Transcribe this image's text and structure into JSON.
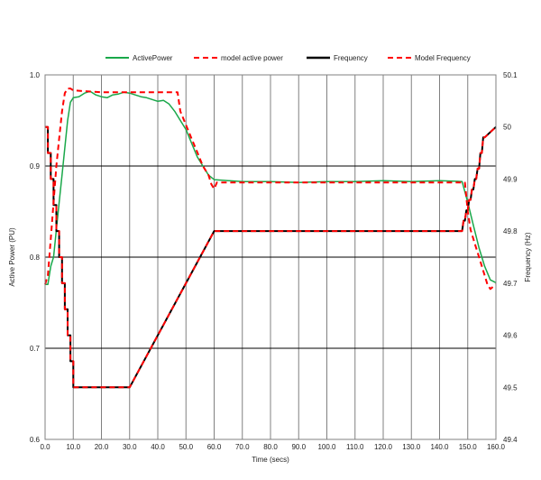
{
  "chart_data": {
    "type": "line",
    "xlabel": "Time (secs)",
    "ylabel": "Active Power (PU)",
    "y2label": "Frequency (Hz)",
    "xlim": [
      0,
      160
    ],
    "ylim": [
      0.6,
      1.0
    ],
    "y2lim": [
      49.4,
      50.1
    ],
    "xticks": [
      "0.0",
      "10.0",
      "20.0",
      "30.0",
      "40.0",
      "50.0",
      "60.0",
      "70.0",
      "80.0",
      "90.0",
      "100.0",
      "110.0",
      "120.0",
      "130.0",
      "140.0",
      "150.0",
      "160.0"
    ],
    "yticks": [
      "0.6",
      "0.7",
      "0.8",
      "0.9",
      "1.0"
    ],
    "y2ticks": [
      "49.4",
      "49.5",
      "49.6",
      "49.7",
      "49.8",
      "49.9",
      "50",
      "50.1"
    ],
    "grid": true,
    "legend_placement": "top",
    "series": [
      {
        "name": "ActivePower",
        "axis": "left",
        "color": "#1aa84a",
        "dash": false,
        "x": [
          0,
          1,
          2,
          3,
          4,
          5,
          6,
          7,
          8,
          9,
          10,
          12,
          14,
          16,
          18,
          20,
          22,
          24,
          26,
          28,
          30,
          32,
          34,
          36,
          38,
          40,
          42,
          44,
          46,
          48,
          50,
          52,
          54,
          56,
          58,
          60,
          65,
          70,
          80,
          90,
          100,
          110,
          120,
          130,
          140,
          148,
          150,
          152,
          154,
          156,
          158,
          160
        ],
        "y": [
          0.77,
          0.77,
          0.79,
          0.8,
          0.83,
          0.86,
          0.89,
          0.92,
          0.95,
          0.97,
          0.975,
          0.976,
          0.98,
          0.982,
          0.978,
          0.976,
          0.975,
          0.978,
          0.979,
          0.981,
          0.98,
          0.978,
          0.976,
          0.975,
          0.973,
          0.971,
          0.972,
          0.968,
          0.96,
          0.95,
          0.94,
          0.925,
          0.91,
          0.9,
          0.89,
          0.885,
          0.884,
          0.883,
          0.883,
          0.882,
          0.883,
          0.883,
          0.884,
          0.883,
          0.884,
          0.883,
          0.86,
          0.835,
          0.81,
          0.79,
          0.775,
          0.772
        ]
      },
      {
        "name": "model active power",
        "axis": "left",
        "color": "#ff0000",
        "dash": true,
        "x": [
          0,
          1,
          2,
          3,
          4,
          5,
          6,
          7,
          8,
          9,
          10,
          15,
          20,
          30,
          40,
          47,
          48,
          50,
          52,
          54,
          56,
          58,
          59,
          60,
          61,
          70,
          80,
          90,
          100,
          110,
          120,
          130,
          140,
          149,
          150,
          151,
          152,
          153,
          154,
          155,
          156,
          157,
          158,
          160
        ],
        "y": [
          0.77,
          0.78,
          0.82,
          0.86,
          0.9,
          0.93,
          0.96,
          0.98,
          0.985,
          0.985,
          0.983,
          0.982,
          0.981,
          0.981,
          0.981,
          0.981,
          0.96,
          0.945,
          0.93,
          0.915,
          0.9,
          0.89,
          0.88,
          0.875,
          0.882,
          0.882,
          0.882,
          0.882,
          0.882,
          0.882,
          0.882,
          0.882,
          0.882,
          0.882,
          0.85,
          0.83,
          0.82,
          0.81,
          0.8,
          0.79,
          0.78,
          0.77,
          0.765,
          0.77
        ]
      },
      {
        "name": "Frequency",
        "axis": "right",
        "color": "#000000",
        "dash": false,
        "x": [
          0,
          1,
          1,
          2,
          2,
          3,
          3,
          4,
          4,
          5,
          5,
          6,
          6,
          7,
          7,
          8,
          8,
          9,
          9,
          10,
          10,
          30,
          60,
          148,
          148.5,
          149,
          149.5,
          150,
          150.5,
          151,
          151.5,
          152,
          152.5,
          153,
          153.5,
          154,
          154.5,
          155,
          155.5,
          156,
          160
        ],
        "y": [
          50.0,
          50.0,
          49.95,
          49.95,
          49.9,
          49.9,
          49.85,
          49.85,
          49.8,
          49.8,
          49.75,
          49.75,
          49.7,
          49.7,
          49.65,
          49.65,
          49.6,
          49.6,
          49.55,
          49.55,
          49.5,
          49.5,
          49.8,
          49.8,
          49.82,
          49.82,
          49.84,
          49.84,
          49.86,
          49.86,
          49.88,
          49.88,
          49.9,
          49.9,
          49.92,
          49.92,
          49.95,
          49.95,
          49.98,
          49.98,
          50.0
        ]
      },
      {
        "name": "Model Frequency",
        "axis": "right",
        "color": "#ff0000",
        "dash": true,
        "x": [
          0,
          1,
          1,
          2,
          2,
          3,
          3,
          4,
          4,
          5,
          5,
          6,
          6,
          7,
          7,
          8,
          8,
          9,
          9,
          10,
          10,
          30,
          60,
          148,
          148.5,
          149,
          149.5,
          150,
          150.5,
          151,
          151.5,
          152,
          152.5,
          153,
          153.5,
          154,
          154.5,
          155,
          155.5,
          156,
          160
        ],
        "y": [
          50.0,
          50.0,
          49.95,
          49.95,
          49.9,
          49.9,
          49.85,
          49.85,
          49.8,
          49.8,
          49.75,
          49.75,
          49.7,
          49.7,
          49.65,
          49.65,
          49.6,
          49.6,
          49.55,
          49.55,
          49.5,
          49.5,
          49.8,
          49.8,
          49.82,
          49.82,
          49.84,
          49.84,
          49.86,
          49.86,
          49.88,
          49.88,
          49.9,
          49.9,
          49.92,
          49.92,
          49.95,
          49.95,
          49.98,
          49.98,
          50.0
        ]
      }
    ]
  }
}
